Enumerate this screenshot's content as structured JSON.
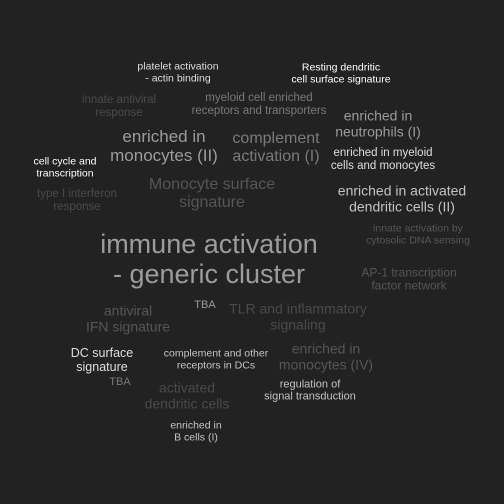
{
  "words": [
    {
      "id": "platelet-activation",
      "text": "platelet activation\n- actin binding"
    },
    {
      "id": "resting-dc-surface",
      "text": "Resting dendritic\ncell surface signature"
    },
    {
      "id": "innate-antiviral",
      "text": "innate antiviral\nresponse"
    },
    {
      "id": "myeloid-receptors",
      "text": "myeloid cell enriched\nreceptors and transporters"
    },
    {
      "id": "enriched-neutrophils",
      "text": "enriched in\nneutrophils (I)"
    },
    {
      "id": "enriched-monocytes-ii",
      "text": "enriched in\nmonocytes (II)"
    },
    {
      "id": "complement-activation",
      "text": "complement\nactivation (I)"
    },
    {
      "id": "enriched-myeloid-mono",
      "text": "enriched in myeloid\ncells and monocytes"
    },
    {
      "id": "cell-cycle",
      "text": "cell cycle and\ntranscription"
    },
    {
      "id": "monocyte-surface",
      "text": "Monocyte surface\nsignature"
    },
    {
      "id": "enriched-activated-dc",
      "text": "enriched in activated\ndendritic cells (II)"
    },
    {
      "id": "type-i-interferon",
      "text": "type I interferon\nresponse"
    },
    {
      "id": "innate-cytosolic-dna",
      "text": "innate activation by\ncytosolic DNA sensing"
    },
    {
      "id": "immune-activation",
      "text": "immune activation\n- generic cluster"
    },
    {
      "id": "ap1-transcription",
      "text": "AP-1 transcription\nfactor network"
    },
    {
      "id": "tba-1",
      "text": "TBA"
    },
    {
      "id": "antiviral-ifn",
      "text": "antiviral\nIFN signature"
    },
    {
      "id": "tlr-inflammatory",
      "text": "TLR and inflammatory\nsignaling"
    },
    {
      "id": "dc-surface",
      "text": "DC surface\nsignature"
    },
    {
      "id": "complement-dc-receptors",
      "text": "complement and other\nreceptors in DCs"
    },
    {
      "id": "enriched-monocytes-iv",
      "text": "enriched in\nmonocytes (IV)"
    },
    {
      "id": "tba-2",
      "text": "TBA"
    },
    {
      "id": "activated-dc",
      "text": "activated\ndendritic cells"
    },
    {
      "id": "regulation-signal",
      "text": "regulation of\nsignal transduction"
    },
    {
      "id": "enriched-b-cells",
      "text": "enriched in\nB cells (I)"
    }
  ],
  "colors": {
    "background": "#222222",
    "white": "#ffffff",
    "light": "#dedede",
    "mid": "#c4c4c4",
    "grey": "#9c9c9c",
    "dim": "#7a7a7a",
    "faint": "#565656",
    "dark": "#4a4a4a"
  }
}
